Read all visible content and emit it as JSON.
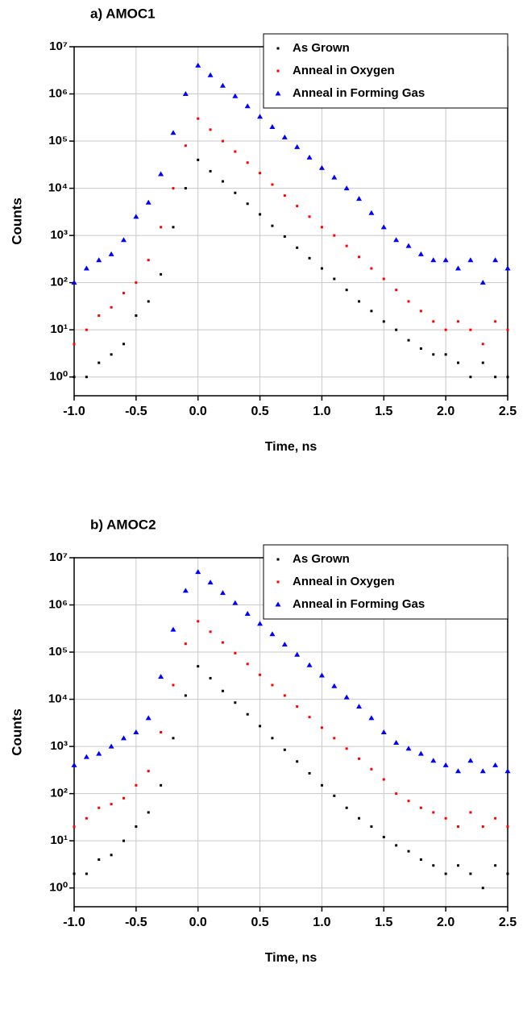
{
  "chart_data": [
    {
      "type": "scatter",
      "title": "a) AMOC1",
      "x_label": "Time, ns",
      "y_label": "Counts",
      "x": [
        -1.0,
        -0.9,
        -0.8,
        -0.7,
        -0.6,
        -0.5,
        -0.4,
        -0.3,
        -0.2,
        -0.1,
        0.0,
        0.1,
        0.2,
        0.3,
        0.4,
        0.5,
        0.6,
        0.7,
        0.8,
        0.9,
        1.0,
        1.1,
        1.2,
        1.3,
        1.4,
        1.5,
        1.6,
        1.7,
        1.8,
        1.9,
        2.0,
        2.1,
        2.2,
        2.3,
        2.4,
        2.5
      ],
      "series": [
        {
          "name": "As Grown",
          "color": "#000000",
          "marker": "square",
          "values": [
            1,
            1,
            2,
            3,
            5,
            20,
            40,
            150,
            1500,
            10000,
            40000,
            23000,
            14000,
            8000,
            4700,
            2800,
            1600,
            950,
            550,
            330,
            200,
            120,
            70,
            40,
            25,
            15,
            10,
            6,
            4,
            3,
            3,
            2,
            1,
            2,
            1,
            1
          ]
        },
        {
          "name": "Anneal in Oxygen",
          "color": "#ff0000",
          "marker": "square",
          "values": [
            5,
            10,
            20,
            30,
            60,
            100,
            300,
            1500,
            10000,
            80000,
            300000,
            175000,
            100000,
            60000,
            35000,
            21000,
            12000,
            7000,
            4200,
            2500,
            1500,
            1000,
            600,
            350,
            200,
            120,
            70,
            40,
            25,
            15,
            10,
            15,
            10,
            5,
            15,
            10
          ]
        },
        {
          "name": "Anneal in Forming Gas",
          "color": "#0000ff",
          "marker": "triangle",
          "values": [
            100,
            200,
            300,
            400,
            800,
            2500,
            5000,
            20000,
            150000,
            1000000,
            4000000,
            2500000,
            1500000,
            900000,
            550000,
            330000,
            200000,
            120000,
            75000,
            45000,
            27000,
            17000,
            10000,
            6000,
            3000,
            1500,
            800,
            600,
            400,
            300,
            300,
            200,
            300,
            100,
            300,
            200
          ]
        }
      ],
      "xlim": [
        -1.0,
        2.5
      ],
      "xticks": [
        {
          "value": -1.0,
          "label": "-1.0"
        },
        {
          "value": -0.5,
          "label": "-0.5"
        },
        {
          "value": 0.0,
          "label": "0.0"
        },
        0.5,
        {
          "value": 1.0,
          "label": "1.0"
        },
        1.5,
        {
          "value": 2.0,
          "label": "2.0"
        },
        2.5
      ],
      "ylim": [
        0.4,
        10000000
      ],
      "yticks": [
        {
          "value": 1,
          "label": "10⁰"
        },
        {
          "value": 10,
          "label": "10¹"
        },
        {
          "value": 100,
          "label": "10²"
        },
        {
          "value": 1000,
          "label": "10³"
        },
        {
          "value": 10000,
          "label": "10⁴"
        },
        {
          "value": 100000,
          "label": "10⁵"
        },
        {
          "value": 1000000,
          "label": "10⁶"
        },
        {
          "value": 10000000,
          "label": "10⁷"
        }
      ],
      "log_y": true,
      "grid": true,
      "legend": "top-right"
    },
    {
      "type": "scatter",
      "title": "b) AMOC2",
      "x_label": "Time, ns",
      "y_label": "Counts",
      "x": [
        -1.0,
        -0.9,
        -0.8,
        -0.7,
        -0.6,
        -0.5,
        -0.4,
        -0.3,
        -0.2,
        -0.1,
        0.0,
        0.1,
        0.2,
        0.3,
        0.4,
        0.5,
        0.6,
        0.7,
        0.8,
        0.9,
        1.0,
        1.1,
        1.2,
        1.3,
        1.4,
        1.5,
        1.6,
        1.7,
        1.8,
        1.9,
        2.0,
        2.1,
        2.2,
        2.3,
        2.4,
        2.5
      ],
      "series": [
        {
          "name": "As Grown",
          "color": "#000000",
          "marker": "square",
          "values": [
            2,
            2,
            4,
            5,
            10,
            20,
            40,
            150,
            1500,
            12000,
            50000,
            28000,
            15000,
            8500,
            4800,
            2700,
            1500,
            850,
            480,
            270,
            150,
            90,
            50,
            30,
            20,
            12,
            8,
            6,
            4,
            3,
            2,
            3,
            2,
            1,
            3,
            2
          ]
        },
        {
          "name": "Anneal in Oxygen",
          "color": "#ff0000",
          "marker": "square",
          "values": [
            20,
            30,
            50,
            60,
            80,
            150,
            300,
            2000,
            20000,
            150000,
            450000,
            270000,
            160000,
            95000,
            56000,
            33000,
            20000,
            12000,
            7000,
            4200,
            2500,
            1500,
            900,
            550,
            330,
            200,
            100,
            70,
            50,
            40,
            30,
            20,
            40,
            20,
            30,
            20
          ]
        },
        {
          "name": "Anneal in Forming Gas",
          "color": "#0000ff",
          "marker": "triangle",
          "values": [
            400,
            600,
            700,
            1000,
            1500,
            2000,
            4000,
            30000,
            300000,
            2000000,
            5000000,
            3000000,
            1800000,
            1100000,
            650000,
            400000,
            240000,
            145000,
            88000,
            53000,
            32000,
            19000,
            11000,
            7000,
            4000,
            2000,
            1200,
            900,
            700,
            500,
            400,
            300,
            500,
            300,
            400,
            300
          ]
        }
      ],
      "xlim": [
        -1.0,
        2.5
      ],
      "xticks": [
        {
          "value": -1.0,
          "label": "-1.0"
        },
        {
          "value": -0.5,
          "label": "-0.5"
        },
        {
          "value": 0.0,
          "label": "0.0"
        },
        0.5,
        {
          "value": 1.0,
          "label": "1.0"
        },
        1.5,
        {
          "value": 2.0,
          "label": "2.0"
        },
        2.5
      ],
      "ylim": [
        0.4,
        10000000
      ],
      "yticks": [
        {
          "value": 1,
          "label": "10⁰"
        },
        {
          "value": 10,
          "label": "10¹"
        },
        {
          "value": 100,
          "label": "10²"
        },
        {
          "value": 1000,
          "label": "10³"
        },
        {
          "value": 10000,
          "label": "10⁴"
        },
        {
          "value": 100000,
          "label": "10⁵"
        },
        {
          "value": 1000000,
          "label": "10⁶"
        },
        {
          "value": 10000000,
          "label": "10⁷"
        }
      ],
      "log_y": true,
      "grid": true,
      "legend": "top-right"
    }
  ]
}
